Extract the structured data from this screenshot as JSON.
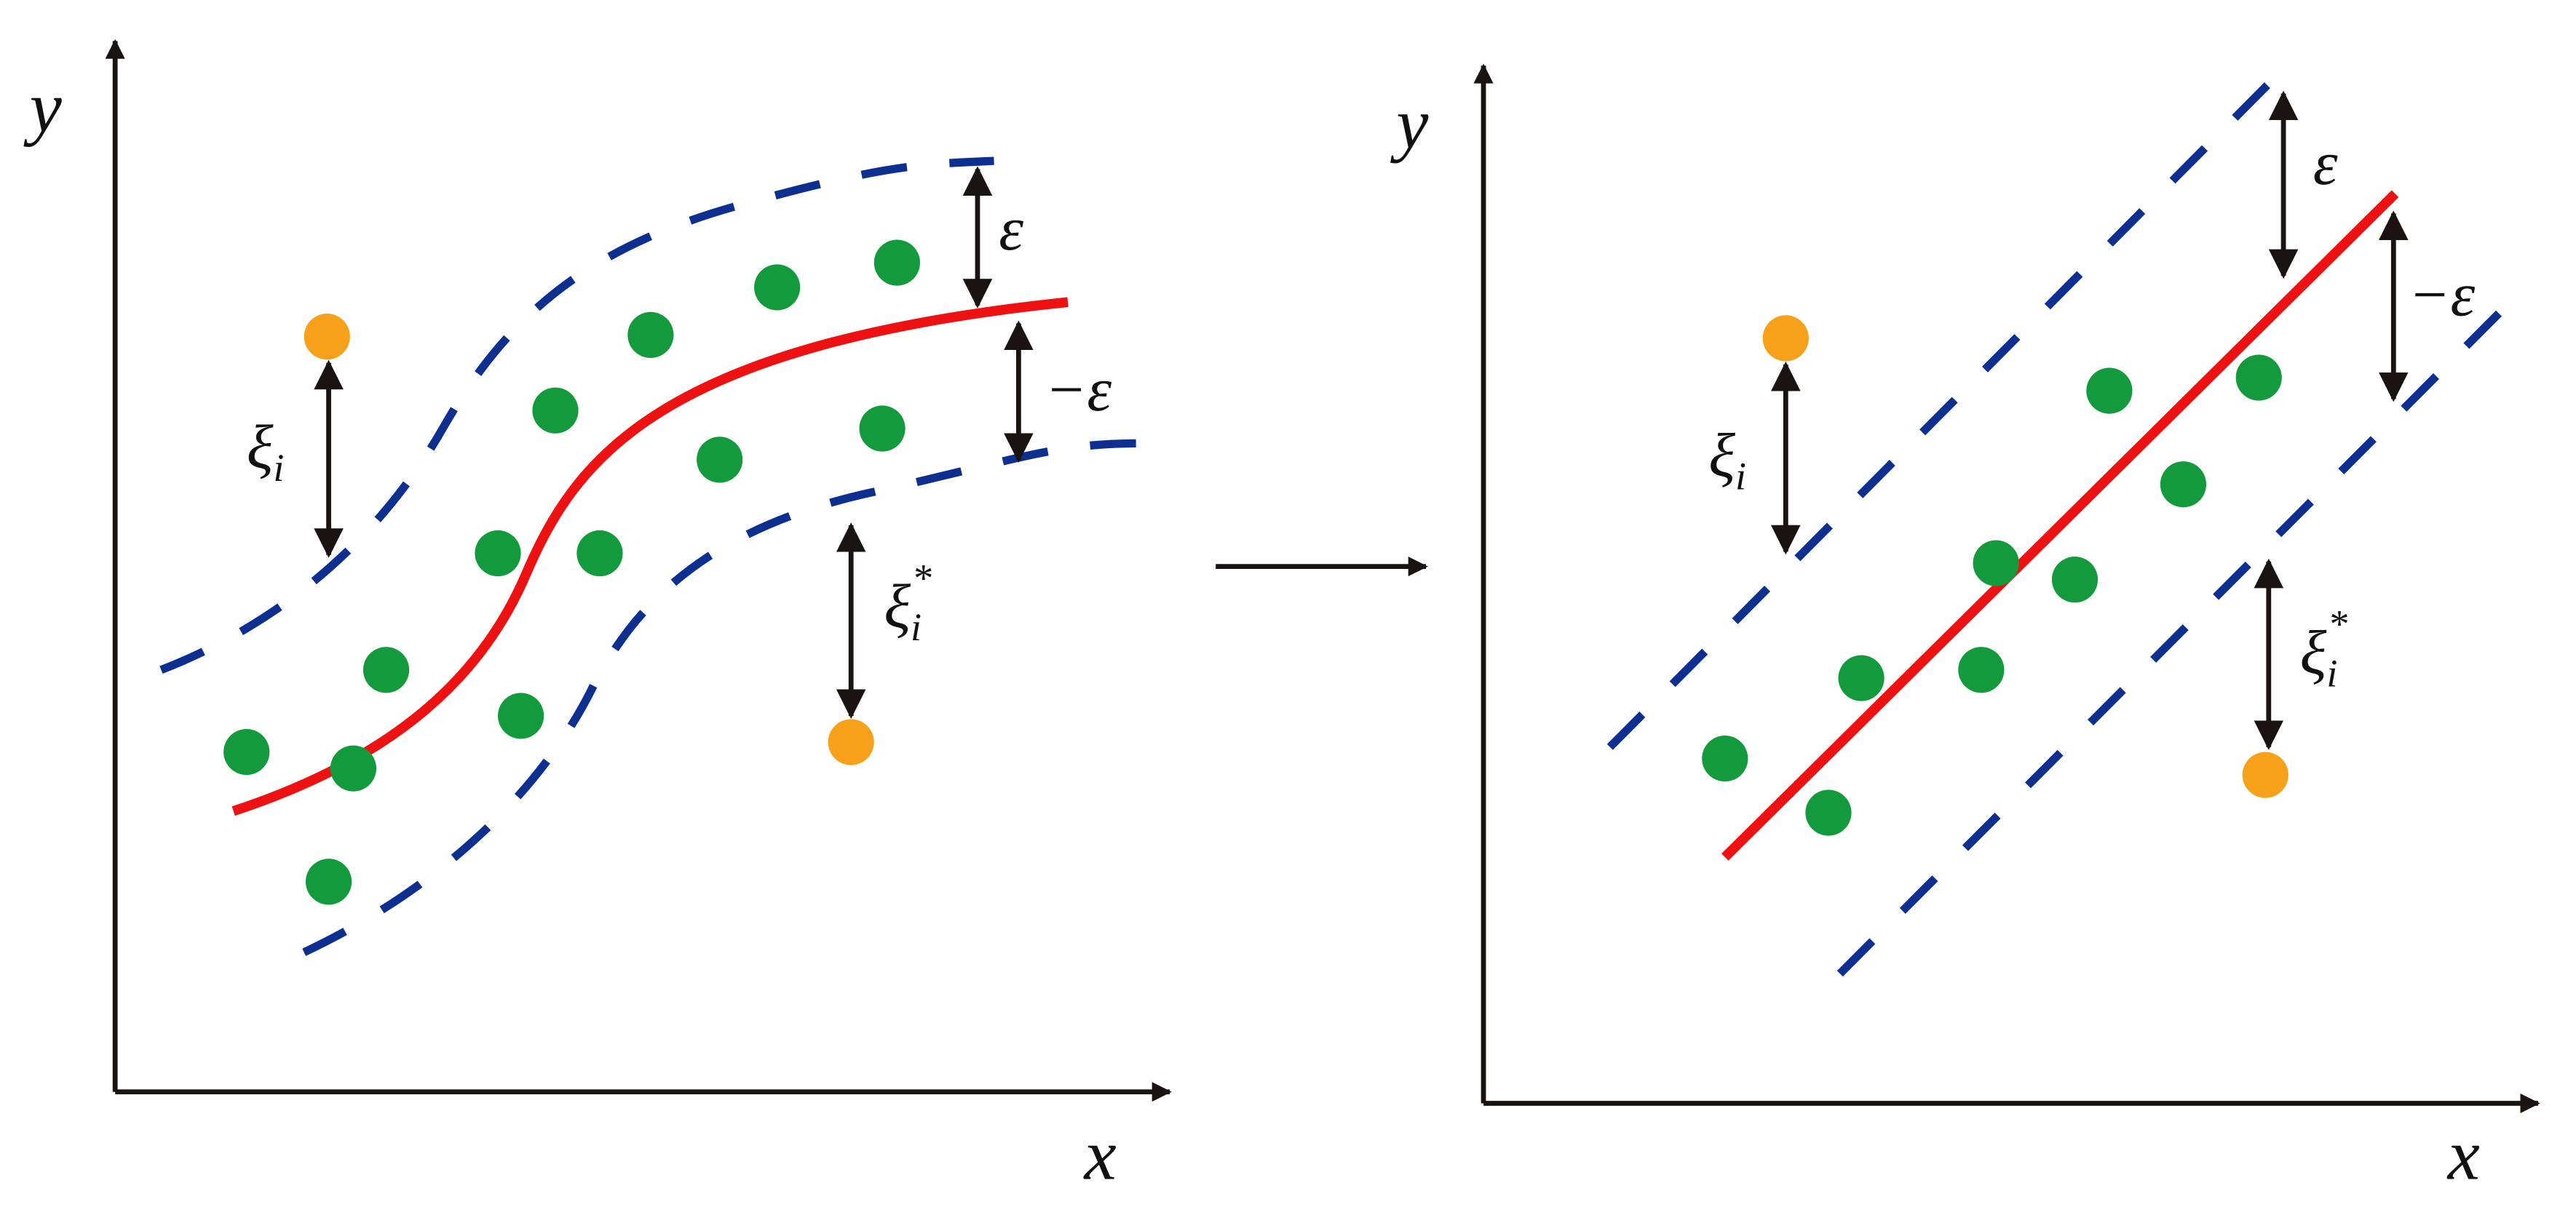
{
  "left_panel": {
    "y_axis_label": "y",
    "x_axis_label": "x",
    "epsilon_label": "ε",
    "neg_epsilon_label": "−ε",
    "xi_label": {
      "symbol": "ξ",
      "subscript": "i"
    },
    "xi_star_label": {
      "symbol": "ξ",
      "subscript": "i",
      "superscript": "*"
    }
  },
  "right_panel": {
    "y_axis_label": "y",
    "x_axis_label": "x",
    "epsilon_label": "ε",
    "neg_epsilon_label": "−ε",
    "xi_label": {
      "symbol": "ξ",
      "subscript": "i"
    },
    "xi_star_label": {
      "symbol": "ξ",
      "subscript": "i",
      "superscript": "*"
    }
  }
}
